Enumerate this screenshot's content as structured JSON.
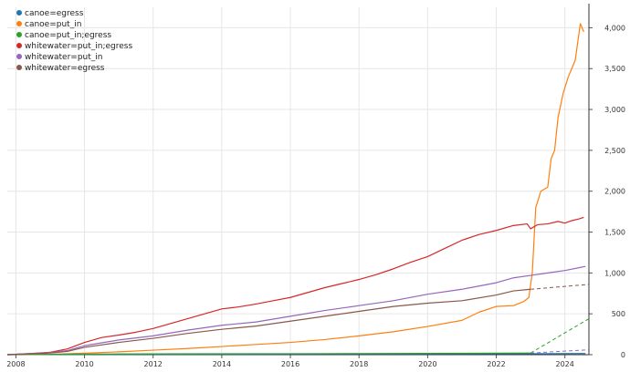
{
  "chart_data": {
    "type": "line",
    "xlim": [
      2007.75,
      2024.7
    ],
    "ylim": [
      0,
      4250
    ],
    "x_ticks": [
      "2008",
      "2010",
      "2012",
      "2014",
      "2016",
      "2018",
      "2020",
      "2022",
      "2024"
    ],
    "y_ticks": [
      "0",
      "500",
      "1,000",
      "1,500",
      "2,000",
      "2,500",
      "3,000",
      "3,500",
      "4,000"
    ],
    "grid": true,
    "y_axis_position": "right",
    "legend_placement": "top-left",
    "series": [
      {
        "name": "canoe=egress",
        "color": "#1f77b4",
        "style": "solid",
        "points": [
          [
            2007.75,
            0
          ],
          [
            2009,
            2
          ],
          [
            2012,
            5
          ],
          [
            2016,
            8
          ],
          [
            2020,
            10
          ],
          [
            2023,
            12
          ],
          [
            2024.6,
            14
          ]
        ]
      },
      {
        "name": "canoe=put_in",
        "color": "#ff7f0e",
        "style": "solid",
        "points": [
          [
            2007.75,
            0
          ],
          [
            2009,
            5
          ],
          [
            2010,
            18
          ],
          [
            2011,
            35
          ],
          [
            2012,
            55
          ],
          [
            2013,
            75
          ],
          [
            2014,
            100
          ],
          [
            2015,
            125
          ],
          [
            2016,
            150
          ],
          [
            2017,
            185
          ],
          [
            2018,
            230
          ],
          [
            2019,
            280
          ],
          [
            2020,
            345
          ],
          [
            2021,
            420
          ],
          [
            2021.5,
            520
          ],
          [
            2022,
            590
          ],
          [
            2022.5,
            600
          ],
          [
            2022.8,
            650
          ],
          [
            2022.95,
            700
          ],
          [
            2023.05,
            1000
          ],
          [
            2023.15,
            1800
          ],
          [
            2023.3,
            2000
          ],
          [
            2023.5,
            2050
          ],
          [
            2023.6,
            2400
          ],
          [
            2023.7,
            2500
          ],
          [
            2023.8,
            2900
          ],
          [
            2023.95,
            3200
          ],
          [
            2024.1,
            3400
          ],
          [
            2024.3,
            3600
          ],
          [
            2024.45,
            4050
          ],
          [
            2024.55,
            3950
          ]
        ]
      },
      {
        "name": "canoe=put_in;egress",
        "color": "#2ca02c",
        "style": "solid",
        "points": [
          [
            2007.75,
            0
          ],
          [
            2009,
            5
          ],
          [
            2012,
            10
          ],
          [
            2016,
            12
          ],
          [
            2020,
            15
          ],
          [
            2023,
            20
          ]
        ]
      },
      {
        "name": "canoe=put_in;egress",
        "color": "#2ca02c",
        "style": "dashed",
        "points": [
          [
            2023,
            20
          ],
          [
            2024.7,
            440
          ]
        ]
      },
      {
        "name": "whitewater=put_in;egress",
        "color": "#d62728",
        "style": "solid",
        "points": [
          [
            2007.75,
            0
          ],
          [
            2008.5,
            15
          ],
          [
            2009,
            30
          ],
          [
            2009.5,
            70
          ],
          [
            2010,
            150
          ],
          [
            2010.5,
            210
          ],
          [
            2011,
            240
          ],
          [
            2011.5,
            275
          ],
          [
            2012,
            320
          ],
          [
            2012.5,
            380
          ],
          [
            2013,
            440
          ],
          [
            2013.5,
            500
          ],
          [
            2014,
            560
          ],
          [
            2014.5,
            585
          ],
          [
            2015,
            620
          ],
          [
            2015.5,
            660
          ],
          [
            2016,
            700
          ],
          [
            2016.5,
            760
          ],
          [
            2017,
            820
          ],
          [
            2017.5,
            870
          ],
          [
            2018,
            920
          ],
          [
            2018.5,
            980
          ],
          [
            2019,
            1050
          ],
          [
            2019.5,
            1130
          ],
          [
            2020,
            1200
          ],
          [
            2020.5,
            1300
          ],
          [
            2021,
            1400
          ],
          [
            2021.5,
            1470
          ],
          [
            2022,
            1520
          ],
          [
            2022.5,
            1580
          ],
          [
            2022.9,
            1600
          ],
          [
            2023,
            1540
          ],
          [
            2023.2,
            1590
          ],
          [
            2023.5,
            1600
          ],
          [
            2023.8,
            1630
          ],
          [
            2024,
            1610
          ],
          [
            2024.2,
            1640
          ],
          [
            2024.4,
            1660
          ],
          [
            2024.55,
            1680
          ]
        ]
      },
      {
        "name": "whitewater=put_in",
        "color": "#9467bd",
        "style": "solid",
        "points": [
          [
            2007.75,
            0
          ],
          [
            2009,
            25
          ],
          [
            2009.5,
            50
          ],
          [
            2010,
            110
          ],
          [
            2011,
            180
          ],
          [
            2012,
            230
          ],
          [
            2013,
            300
          ],
          [
            2014,
            360
          ],
          [
            2015,
            400
          ],
          [
            2016,
            470
          ],
          [
            2017,
            540
          ],
          [
            2018,
            600
          ],
          [
            2019,
            660
          ],
          [
            2020,
            740
          ],
          [
            2021,
            800
          ],
          [
            2022,
            880
          ],
          [
            2022.5,
            940
          ],
          [
            2023,
            970
          ],
          [
            2023.5,
            1000
          ],
          [
            2024,
            1030
          ],
          [
            2024.6,
            1080
          ]
        ]
      },
      {
        "name": "whitewater=put_in",
        "color": "#9467bd",
        "style": "dashed",
        "points": [
          [
            2023,
            20
          ],
          [
            2024.7,
            60
          ]
        ]
      },
      {
        "name": "whitewater=egress",
        "color": "#8c564b",
        "style": "solid",
        "points": [
          [
            2007.75,
            0
          ],
          [
            2009,
            20
          ],
          [
            2009.5,
            40
          ],
          [
            2010,
            90
          ],
          [
            2011,
            150
          ],
          [
            2012,
            200
          ],
          [
            2013,
            260
          ],
          [
            2014,
            310
          ],
          [
            2015,
            350
          ],
          [
            2016,
            410
          ],
          [
            2017,
            470
          ],
          [
            2018,
            530
          ],
          [
            2019,
            590
          ],
          [
            2020,
            630
          ],
          [
            2021,
            660
          ],
          [
            2022,
            730
          ],
          [
            2022.5,
            780
          ],
          [
            2023,
            800
          ]
        ]
      },
      {
        "name": "whitewater=egress",
        "color": "#8c564b",
        "style": "dashed",
        "points": [
          [
            2023,
            800
          ],
          [
            2024.7,
            860
          ]
        ]
      }
    ]
  },
  "legend": {
    "items": [
      {
        "label": "canoe=egress",
        "color": "#1f77b4"
      },
      {
        "label": "canoe=put_in",
        "color": "#ff7f0e"
      },
      {
        "label": "canoe=put_in;egress",
        "color": "#2ca02c"
      },
      {
        "label": "whitewater=put_in;egress",
        "color": "#d62728"
      },
      {
        "label": "whitewater=put_in",
        "color": "#9467bd"
      },
      {
        "label": "whitewater=egress",
        "color": "#8c564b"
      }
    ]
  }
}
